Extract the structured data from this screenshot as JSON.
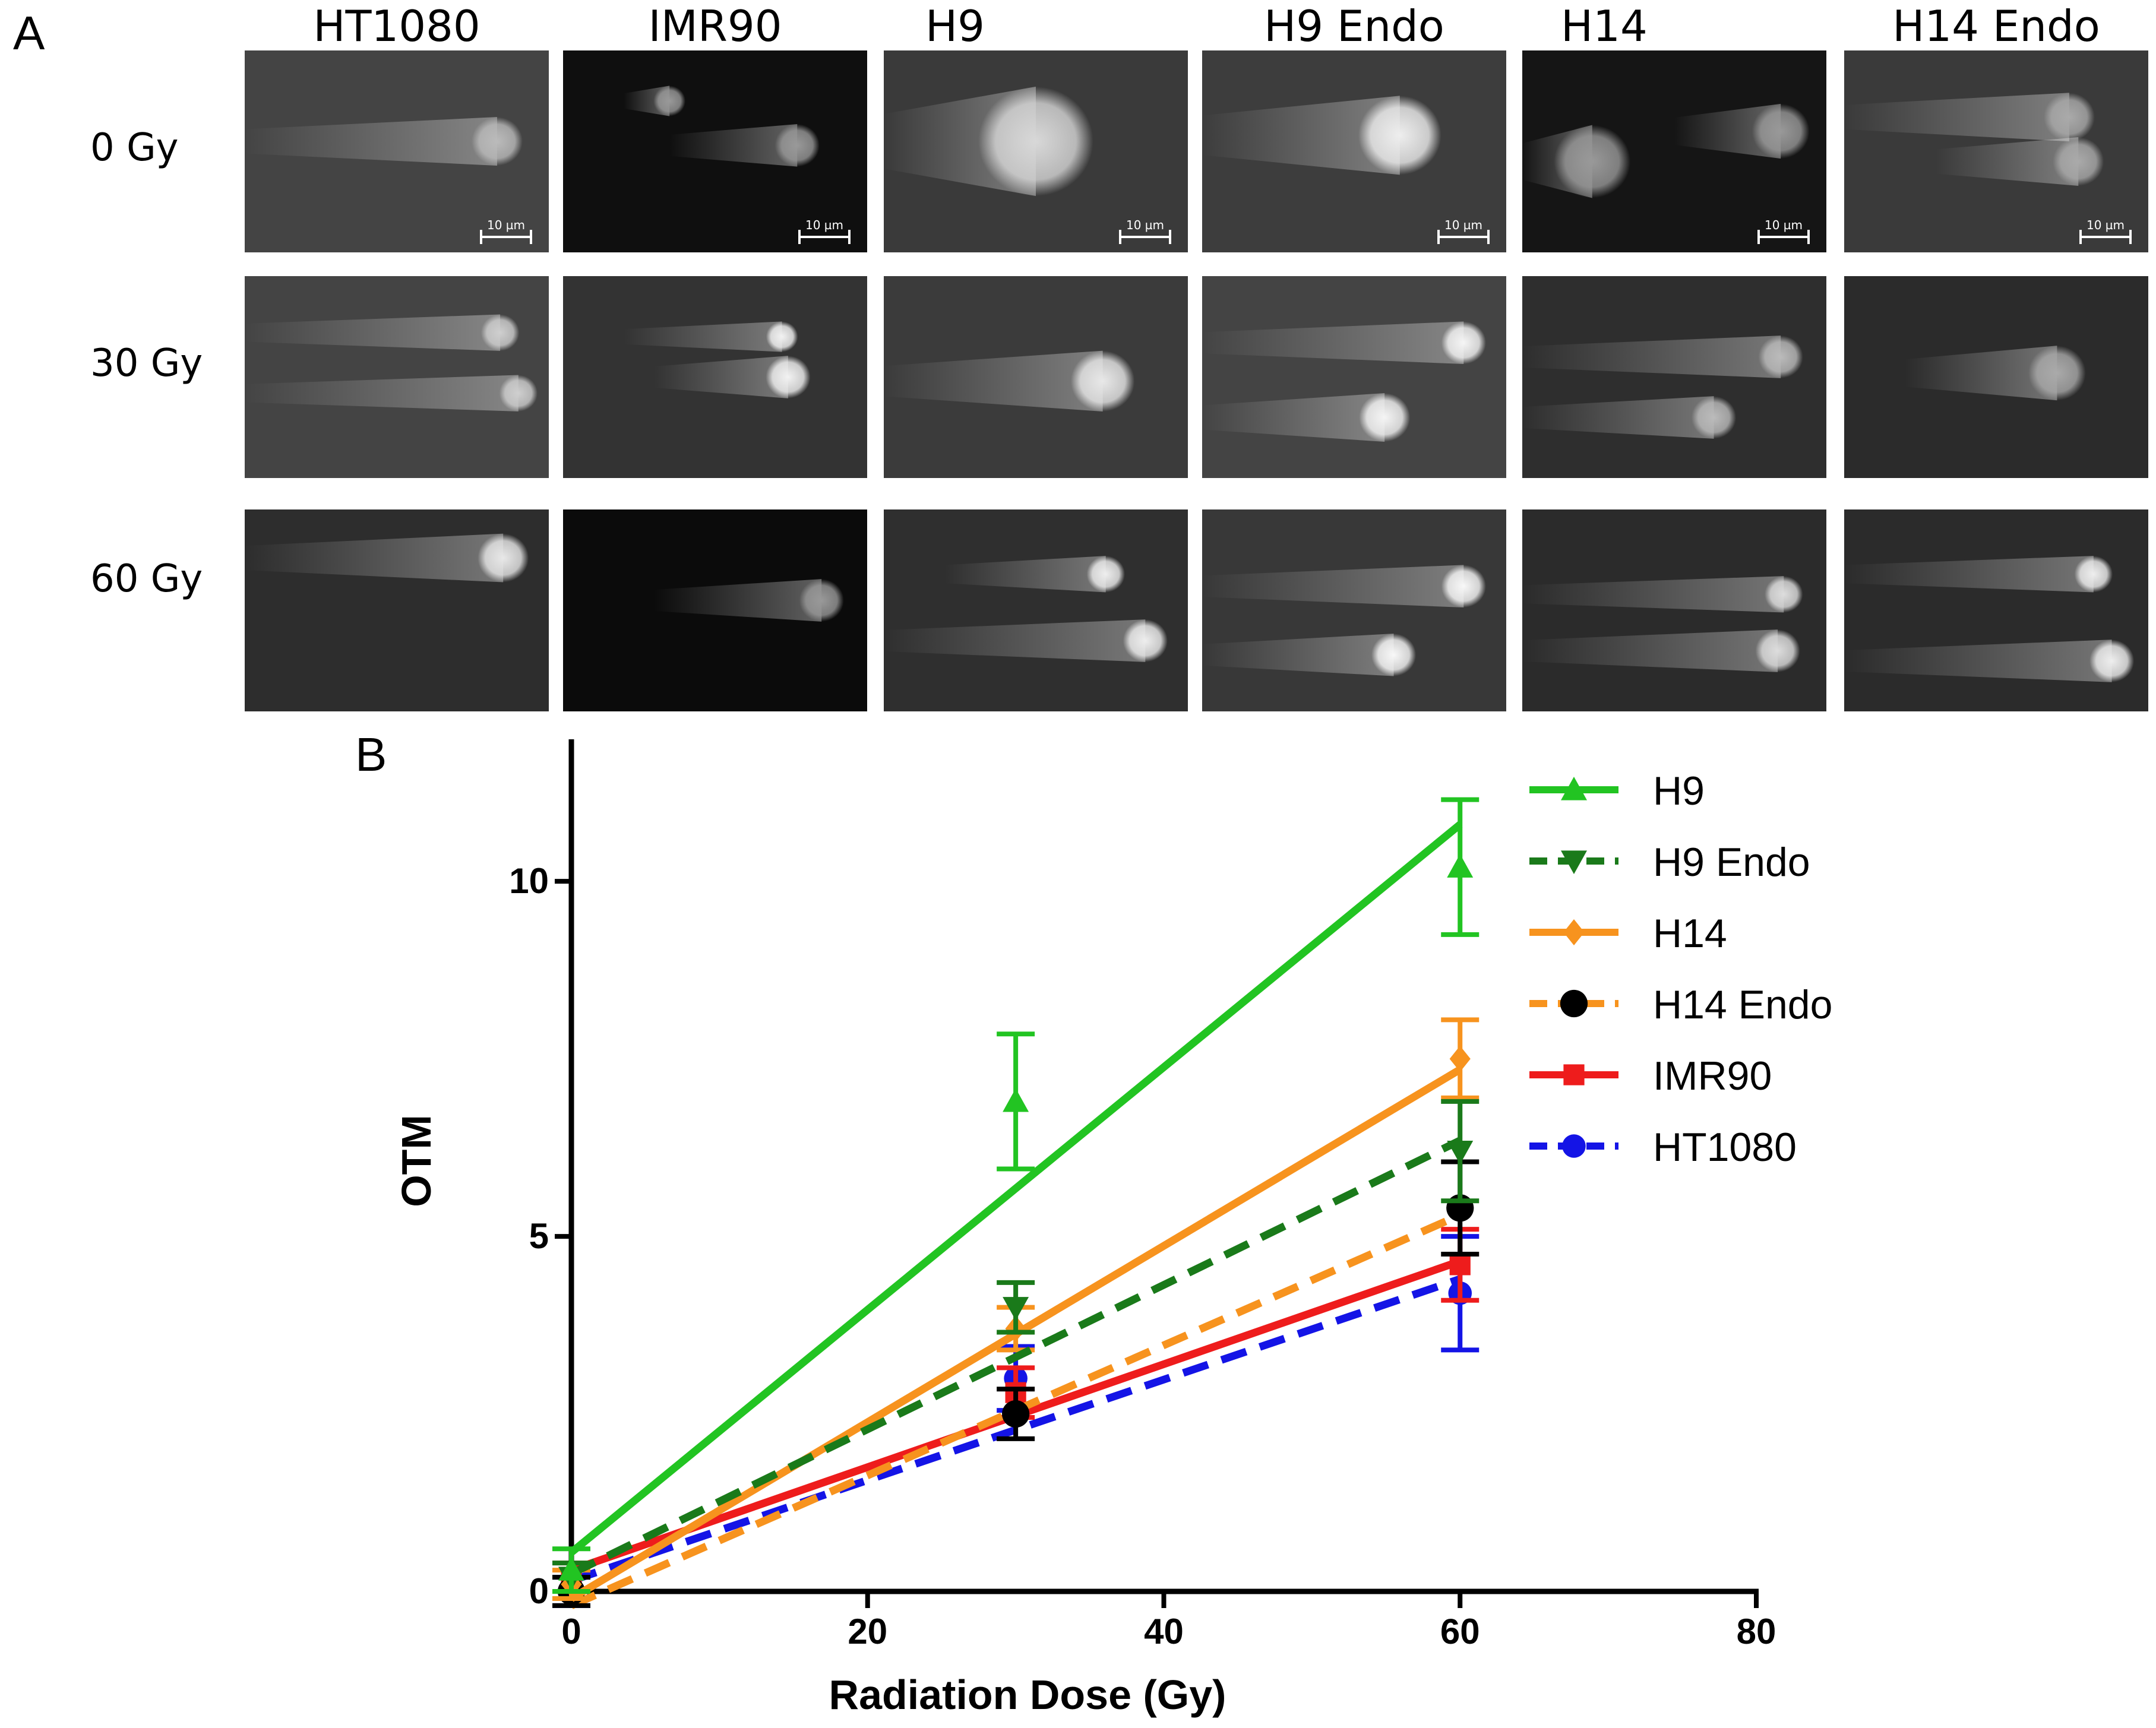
{
  "panel_a": {
    "letter": "A",
    "columns": [
      "HT1080",
      "IMR90",
      "H9",
      "H9 Endo",
      "H14",
      "H14 Endo"
    ],
    "rows": [
      "0 Gy",
      "30 Gy",
      "60 Gy"
    ],
    "scale_bar_label": "10 µm"
  },
  "panel_b": {
    "letter": "B"
  },
  "chart_data": {
    "type": "line",
    "xlabel": "Radiation Dose (Gy)",
    "ylabel": "OTM",
    "xlim": [
      0,
      80
    ],
    "ylim": [
      0,
      12
    ],
    "x_ticks": [
      0,
      20,
      40,
      60,
      80
    ],
    "y_ticks": [
      0,
      5,
      10
    ],
    "x_tick_labels": [
      "0",
      "20",
      "40",
      "60",
      "80"
    ],
    "y_tick_labels": [
      "0",
      "5",
      "10"
    ],
    "legend_position": "top-right",
    "series": [
      {
        "name": "H9",
        "color": "#22c422",
        "dashed": false,
        "marker": "triangle-up",
        "x": [
          0,
          30,
          60
        ],
        "y": [
          0.3,
          6.9,
          10.2
        ],
        "err": [
          0.3,
          0.95,
          0.95
        ],
        "fit": [
          [
            0,
            0.55
          ],
          [
            60,
            10.8
          ]
        ]
      },
      {
        "name": "H9 Endo",
        "color": "#1a7a1a",
        "dashed": true,
        "marker": "triangle-down",
        "x": [
          0,
          30,
          60
        ],
        "y": [
          0.2,
          4.0,
          6.2
        ],
        "err": [
          0.2,
          0.35,
          0.7
        ],
        "fit": [
          [
            0,
            0.25
          ],
          [
            60,
            6.35
          ]
        ]
      },
      {
        "name": "H14",
        "color": "#f7931e",
        "dashed": false,
        "marker": "diamond",
        "x": [
          0,
          30,
          60
        ],
        "y": [
          0.1,
          3.7,
          7.5
        ],
        "err": [
          0.2,
          0.3,
          0.55
        ],
        "fit": [
          [
            0,
            -0.1
          ],
          [
            60,
            7.35
          ]
        ]
      },
      {
        "name": "H14 Endo",
        "color": "#f7931e",
        "dashed": true,
        "marker": "circle-black",
        "x": [
          0,
          30,
          60
        ],
        "y": [
          0.0,
          2.5,
          5.4
        ],
        "err": [
          0.2,
          0.35,
          0.65
        ],
        "fit": [
          [
            0,
            -0.2
          ],
          [
            60,
            5.3
          ]
        ]
      },
      {
        "name": "IMR90",
        "color": "#ee1c1c",
        "dashed": false,
        "marker": "square",
        "x": [
          0,
          30,
          60
        ],
        "y": [
          0.2,
          2.8,
          4.6
        ],
        "err": [
          0.2,
          0.35,
          0.5
        ],
        "fit": [
          [
            0,
            0.3
          ],
          [
            60,
            4.65
          ]
        ]
      },
      {
        "name": "HT1080",
        "color": "#1414e6",
        "dashed": true,
        "marker": "circle",
        "x": [
          0,
          30,
          60
        ],
        "y": [
          0.0,
          3.0,
          4.2
        ],
        "err": [
          0.2,
          0.45,
          0.8
        ],
        "fit": [
          [
            0,
            0.15
          ],
          [
            60,
            4.4
          ]
        ]
      }
    ]
  }
}
